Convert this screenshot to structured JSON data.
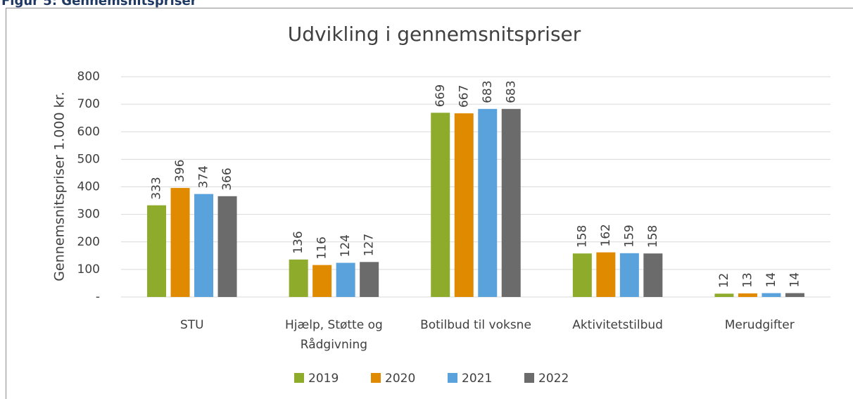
{
  "figure_caption": "Figur 5: Gennemsnitspriser",
  "chart_data": {
    "type": "bar",
    "title": "Udvikling i gennemsnitspriser",
    "y_label": "Gennemsnitspriser 1.000 kr.",
    "categories": [
      "STU",
      "Hjælp, Støtte og Rådgivning",
      "Botilbud til voksne",
      "Aktivitetstilbud",
      "Merudgifter"
    ],
    "series": [
      {
        "name": "2019",
        "color": "#8eab2b",
        "values": [
          333,
          136,
          669,
          158,
          12
        ]
      },
      {
        "name": "2020",
        "color": "#e08a00",
        "values": [
          396,
          116,
          667,
          162,
          13
        ]
      },
      {
        "name": "2021",
        "color": "#5aa2dc",
        "values": [
          374,
          124,
          683,
          159,
          14
        ]
      },
      {
        "name": "2022",
        "color": "#6b6b6b",
        "values": [
          366,
          127,
          683,
          158,
          14
        ]
      }
    ],
    "ylim": [
      0,
      800
    ],
    "yticks": [
      {
        "value": 0,
        "label": "-"
      },
      100,
      200,
      300,
      400,
      500,
      600,
      700,
      800
    ],
    "grid": true,
    "legend": "bottom"
  }
}
